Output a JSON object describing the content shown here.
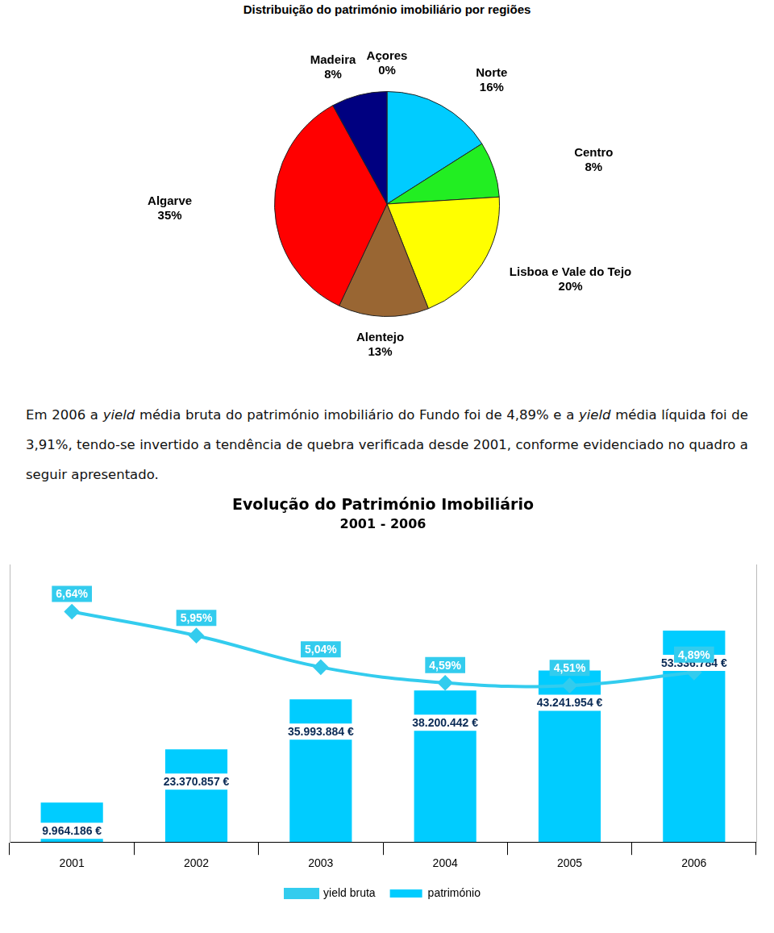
{
  "chart_data": [
    {
      "type": "pie",
      "title": "Distribuição do património imobiliário por regiões",
      "categories": [
        "Norte",
        "Centro",
        "Lisboa e Vale do Tejo",
        "Alentejo",
        "Algarve",
        "Madeira",
        "Açores"
      ],
      "values": [
        16,
        8,
        20,
        13,
        35,
        8,
        0
      ],
      "value_labels": [
        "16%",
        "8%",
        "20%",
        "13%",
        "35%",
        "8%",
        "0%"
      ],
      "colors": [
        "#00ccff",
        "#22ee22",
        "#ffff00",
        "#996633",
        "#ff0000",
        "#000080",
        "#9999ff"
      ],
      "data_labels": true
    },
    {
      "type": "bar",
      "title": "Evolução do Património Imobiliário",
      "subtitle": "2001 - 2006",
      "categories": [
        "2001",
        "2002",
        "2003",
        "2004",
        "2005",
        "2006"
      ],
      "series": [
        {
          "name": "património",
          "type": "bar",
          "color": "#00ccff",
          "values": [
            9964186,
            23370857,
            35993884,
            38200442,
            43241954,
            53336784
          ],
          "value_labels": [
            "9.964.186 €",
            "23.370.857 €",
            "35.993.884 €",
            "38.200.442 €",
            "43.241.954 €",
            "53.336.784 €"
          ]
        },
        {
          "name": "yield bruta",
          "type": "line",
          "axis": "y2",
          "color": "#33ccee",
          "marker": "diamond",
          "values": [
            6.64,
            5.95,
            5.04,
            4.59,
            4.51,
            4.89
          ],
          "value_labels": [
            "6,64%",
            "5,95%",
            "5,04%",
            "4,59%",
            "4,51%",
            "4,89%"
          ]
        }
      ],
      "ylim": [
        0,
        70000000
      ],
      "y2lim": [
        0,
        8
      ],
      "grid": false,
      "tick_labels": "x",
      "data_labels": true,
      "legend": "bottom"
    }
  ],
  "paragraph": [
    {
      "text": "Em 2006 a "
    },
    {
      "text": "yield",
      "style": "italic"
    },
    {
      "text": " média bruta do património imobiliário do Fundo foi de 4,89% e a "
    },
    {
      "text": "yield",
      "style": "italic"
    },
    {
      "text": " média líquida foi de 3,91%, tendo-se invertido a tendência de quebra verificada desde 2001, conforme evidenciado no quadro a seguir apresentado."
    }
  ]
}
